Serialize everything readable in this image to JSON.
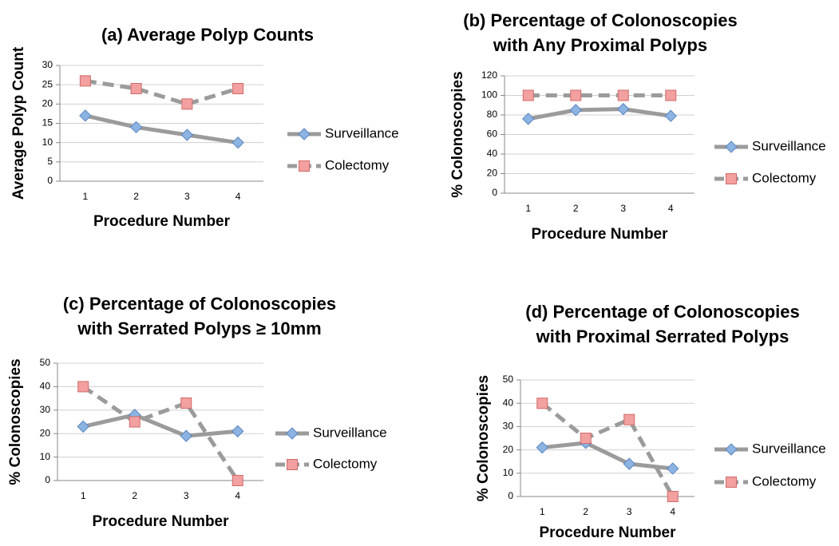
{
  "chart_data": [
    {
      "type": "line",
      "title": [
        "(a) Average Polyp Counts"
      ],
      "x_label": "Procedure Number",
      "y_label": "Average Polyp Count",
      "categories": [
        "1",
        "2",
        "3",
        "4"
      ],
      "ylim": [
        0,
        30
      ],
      "yticks": [
        0,
        5,
        10,
        15,
        20,
        25,
        30
      ],
      "grid": true,
      "series": [
        {
          "name": "Surveillance",
          "color": "#8db3e2",
          "line_color": "#9b9b9b",
          "marker": "diamond",
          "dashed": false,
          "values": [
            17,
            14,
            12,
            10
          ]
        },
        {
          "name": "Colectomy",
          "color": "#f2a0a0",
          "line_color": "#9b9b9b",
          "marker": "square",
          "dashed": true,
          "values": [
            26,
            24,
            20,
            24
          ]
        }
      ]
    },
    {
      "type": "line",
      "title": [
        "(b) Percentage of Colonoscopies",
        "with Any Proximal Polyps"
      ],
      "x_label": "Procedure Number",
      "y_label": "% Colonoscopies",
      "categories": [
        "1",
        "2",
        "3",
        "4"
      ],
      "ylim": [
        0,
        120
      ],
      "yticks": [
        0,
        20,
        40,
        60,
        80,
        100,
        120
      ],
      "grid": true,
      "series": [
        {
          "name": "Surveillance",
          "color": "#8db3e2",
          "line_color": "#9b9b9b",
          "marker": "diamond",
          "dashed": false,
          "values": [
            76,
            85,
            86,
            79
          ]
        },
        {
          "name": "Colectomy",
          "color": "#f2a0a0",
          "line_color": "#9b9b9b",
          "marker": "square",
          "dashed": true,
          "values": [
            100,
            100,
            100,
            100
          ]
        }
      ]
    },
    {
      "type": "line",
      "title": [
        "(c) Percentage of Colonoscopies",
        "with Serrated Polyps ≥ 10mm"
      ],
      "x_label": "Procedure Number",
      "y_label": "% Colonoscopies",
      "categories": [
        "1",
        "2",
        "3",
        "4"
      ],
      "ylim": [
        0,
        50
      ],
      "yticks": [
        0,
        10,
        20,
        30,
        40,
        50
      ],
      "grid": true,
      "series": [
        {
          "name": "Surveillance",
          "color": "#8db3e2",
          "line_color": "#9b9b9b",
          "marker": "diamond",
          "dashed": false,
          "values": [
            23,
            28,
            19,
            21
          ]
        },
        {
          "name": "Colectomy",
          "color": "#f2a0a0",
          "line_color": "#9b9b9b",
          "marker": "square",
          "dashed": true,
          "values": [
            40,
            25,
            33,
            0
          ]
        }
      ]
    },
    {
      "type": "line",
      "title": [
        "(d) Percentage of Colonoscopies",
        "with Proximal Serrated Polyps"
      ],
      "x_label": "Procedure Number",
      "y_label": "% Colonoscopies",
      "categories": [
        "1",
        "2",
        "3",
        "4"
      ],
      "ylim": [
        0,
        50
      ],
      "yticks": [
        0,
        10,
        20,
        30,
        40,
        50
      ],
      "grid": true,
      "series": [
        {
          "name": "Surveillance",
          "color": "#8db3e2",
          "line_color": "#9b9b9b",
          "marker": "diamond",
          "dashed": false,
          "values": [
            21,
            23,
            14,
            12
          ]
        },
        {
          "name": "Colectomy",
          "color": "#f2a0a0",
          "line_color": "#9b9b9b",
          "marker": "square",
          "dashed": true,
          "values": [
            40,
            25,
            33,
            0
          ]
        }
      ]
    }
  ]
}
